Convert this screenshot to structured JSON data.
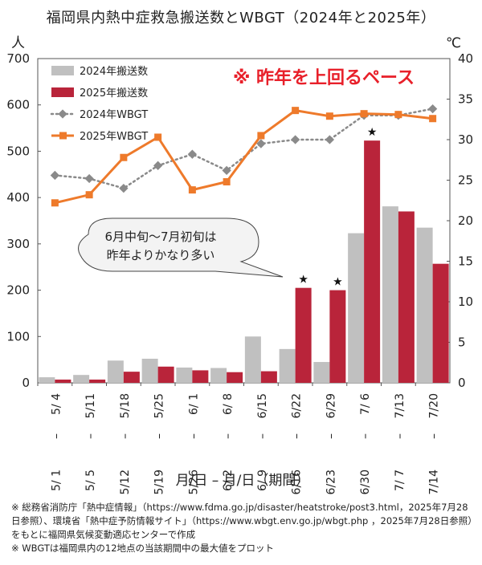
{
  "chart_data": {
    "type": "bar",
    "title": "福岡県内熱中症救急搬送数とWBGT（2024年と2025年）",
    "y_left_unit": "人",
    "y_right_unit": "℃",
    "y_left_ticks": [
      "0",
      "100",
      "200",
      "300",
      "400",
      "500",
      "600",
      "700"
    ],
    "y_right_ticks": [
      "0",
      "5",
      "10",
      "15",
      "20",
      "25",
      "30",
      "35",
      "40"
    ],
    "ylim_left": [
      0,
      700
    ],
    "ylim_right": [
      0,
      40
    ],
    "xlabel": "月/日 – 月/日（期間）",
    "categories_start": [
      "5/ 1",
      "5/ 5",
      "5/12",
      "5/19",
      "5/26",
      "6/ 2",
      "6/ 9",
      "6/16",
      "6/23",
      "6/30",
      "7/ 7",
      "7/14"
    ],
    "categories_end": [
      "5/ 4",
      "5/11",
      "5/18",
      "5/25",
      "6/ 1",
      "6/ 8",
      "6/15",
      "6/22",
      "6/29",
      "7/ 6",
      "7/13",
      "7/20"
    ],
    "series": [
      {
        "name": "2024年搬送数",
        "kind": "bar",
        "axis": "left",
        "color": "#c0c0c0",
        "values": [
          12,
          17,
          48,
          52,
          33,
          32,
          100,
          73,
          45,
          323,
          381,
          335
        ]
      },
      {
        "name": "2025年搬送数",
        "kind": "bar",
        "axis": "left",
        "color": "#b9243a",
        "values": [
          7,
          7,
          24,
          35,
          27,
          23,
          25,
          205,
          200,
          523,
          370,
          257
        ]
      },
      {
        "name": "2024年WBGT",
        "kind": "line",
        "axis": "right",
        "color": "#8a8a8a",
        "values": [
          25.6,
          25.2,
          24.0,
          26.8,
          28.2,
          26.2,
          29.5,
          30.0,
          30.0,
          33.0,
          33.0,
          33.8
        ]
      },
      {
        "name": "2025年WBGT",
        "kind": "line",
        "axis": "right",
        "color": "#ee7a2b",
        "values": [
          22.2,
          23.2,
          27.8,
          30.3,
          23.8,
          24.8,
          30.5,
          33.6,
          32.9,
          33.2,
          33.1,
          32.6
        ]
      }
    ],
    "star_marker": "★",
    "star_indices": [
      7,
      8,
      9
    ],
    "annotation_highlight": "※ 昨年を上回るペース",
    "annotation_highlight_color": "#e8202a",
    "callout_lines": [
      "6月中旬～7月初旬は",
      "昨年よりかなり多い"
    ],
    "legend_position": "top-left",
    "grid": false
  },
  "notes": [
    "※ 総務省消防庁「熱中症情報」（https://www.fdma.go.jp/disaster/heatstroke/post3.html，2025年7月28日参照）、環境省「熱中症予防情報サイト」（https://www.wbgt.env.go.jp/wbgt.php ，2025年7月28日参照）をもとに福岡県気候変動適応センターで作成",
    "※ WBGTは福岡県内の12地点の当該期間中の最大値をプロット"
  ]
}
